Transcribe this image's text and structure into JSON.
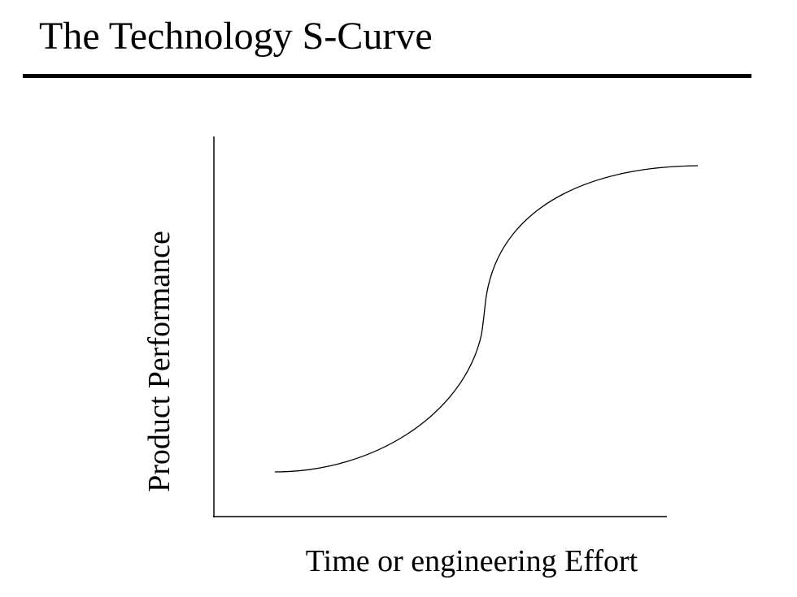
{
  "slide": {
    "title": "The Technology S-Curve"
  },
  "diagram": {
    "y_axis_label": "Product Performance",
    "x_axis_label": "Time or engineering Effort",
    "curve_shape": "s-curve",
    "line_color": "#000000"
  }
}
